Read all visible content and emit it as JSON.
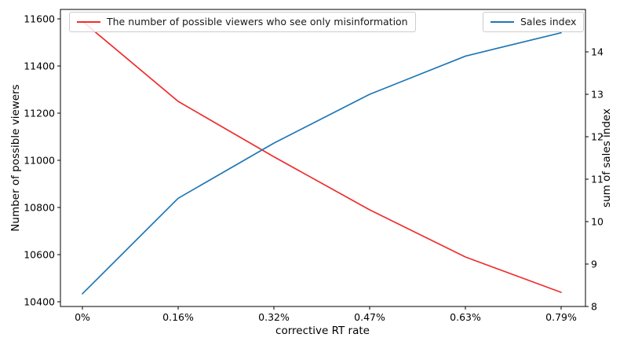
{
  "chart_data": {
    "type": "line",
    "title": "",
    "xlabel": "corrective RT rate",
    "ylabel_left": "Number of possible viewers",
    "ylabel_right": "sum of sales index",
    "categories": [
      "0%",
      "0.16%",
      "0.32%",
      "0.47%",
      "0.63%",
      "0.79%"
    ],
    "series": [
      {
        "name": "The number of possible viewers who see only misinformation",
        "axis": "left",
        "color": "#ef2d2d",
        "values": [
          11590,
          11250,
          11015,
          10790,
          10590,
          10440
        ]
      },
      {
        "name": "Sales index",
        "axis": "right",
        "color": "#1f77b4",
        "values": [
          8.3,
          10.55,
          11.85,
          13.0,
          13.9,
          14.45
        ]
      }
    ],
    "left_ticks": [
      10400,
      10600,
      10800,
      11000,
      11200,
      11400,
      11600
    ],
    "right_ticks": [
      8,
      9,
      10,
      11,
      12,
      13,
      14
    ],
    "left_ylim": [
      10380,
      11640
    ],
    "right_ylim": [
      8,
      15
    ],
    "grid": false,
    "legend_positions": [
      "upper left",
      "upper right"
    ],
    "frame_color": "#000000",
    "text_color": "#000000"
  }
}
